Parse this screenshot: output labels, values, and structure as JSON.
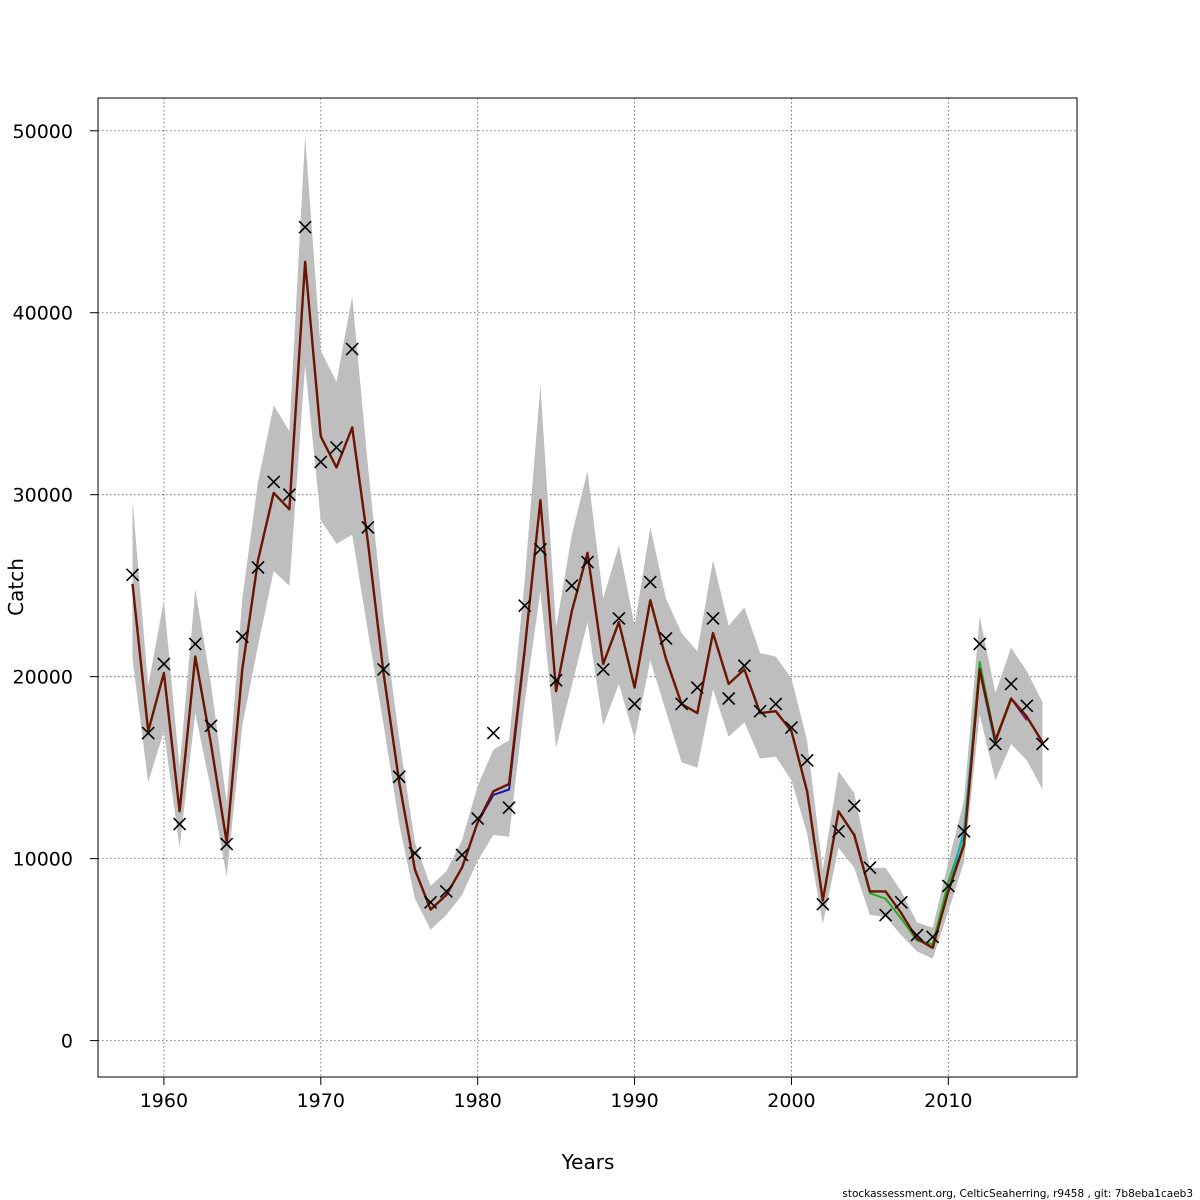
{
  "chart_data": {
    "type": "line",
    "title": "",
    "xlabel": "Years",
    "ylabel": "Catch",
    "xlim": [
      1955.8,
      2018.2
    ],
    "ylim": [
      -2000,
      51800
    ],
    "x_ticks": [
      1960,
      1970,
      1980,
      1990,
      2000,
      2010
    ],
    "y_ticks": [
      0,
      10000,
      20000,
      30000,
      40000,
      50000
    ],
    "x_tick_labels": [
      "1960",
      "1970",
      "1980",
      "1990",
      "2000",
      "2010"
    ],
    "y_tick_labels": [
      "0",
      "10000",
      "20000",
      "30000",
      "40000",
      "50000"
    ],
    "grid": true,
    "legend": "none",
    "footer": "stockassessment.org, CelticSeaherring, r9458 , git: 7b8eba1caeb3",
    "colors": {
      "band": "#bebebe",
      "estimate": "#6b1500",
      "marker": "#000000",
      "retro_1": "#d8c25c",
      "retro_2": "#22aa22",
      "retro_3": "#00b8c8",
      "retro_4": "#1a1aaa",
      "retro_5": "#7a1a7a"
    },
    "observed": {
      "marker": "x",
      "x": [
        1958,
        1959,
        1960,
        1961,
        1962,
        1963,
        1964,
        1965,
        1966,
        1967,
        1968,
        1969,
        1970,
        1971,
        1972,
        1973,
        1974,
        1975,
        1976,
        1977,
        1978,
        1979,
        1980,
        1981,
        1982,
        1983,
        1984,
        1985,
        1986,
        1987,
        1988,
        1989,
        1990,
        1991,
        1992,
        1993,
        1994,
        1995,
        1996,
        1997,
        1998,
        1999,
        2000,
        2001,
        2002,
        2003,
        2004,
        2005,
        2006,
        2007,
        2008,
        2009,
        2010,
        2011,
        2012,
        2013,
        2014,
        2015,
        2016
      ],
      "y": [
        25600,
        16900,
        20700,
        11900,
        21800,
        17300,
        10800,
        22200,
        26000,
        30700,
        30000,
        44700,
        31800,
        32600,
        38000,
        28200,
        20400,
        14500,
        10300,
        7600,
        8200,
        10200,
        12200,
        16900,
        12800,
        23900,
        27000,
        19800,
        25000,
        26300,
        20400,
        23200,
        18500,
        25200,
        22100,
        18500,
        19400,
        23200,
        18800,
        20600,
        18100,
        18500,
        17200,
        15400,
        7500,
        11500,
        12900,
        9500,
        6900,
        7600,
        5800,
        5700,
        8500,
        11500,
        21800,
        16300,
        19600,
        18400,
        16300
      ]
    },
    "series": [
      {
        "role": "estimate",
        "x": [
          1958,
          1959,
          1960,
          1961,
          1962,
          1963,
          1964,
          1965,
          1966,
          1967,
          1968,
          1969,
          1970,
          1971,
          1972,
          1973,
          1974,
          1975,
          1976,
          1977,
          1978,
          1979,
          1980,
          1981,
          1982,
          1983,
          1984,
          1985,
          1986,
          1987,
          1988,
          1989,
          1990,
          1991,
          1992,
          1993,
          1994,
          1995,
          1996,
          1997,
          1998,
          1999,
          2000,
          2001,
          2002,
          2003,
          2004,
          2005,
          2006,
          2007,
          2008,
          2009,
          2010,
          2011,
          2012,
          2013,
          2014,
          2015,
          2016
        ],
        "values": [
          25100,
          17000,
          20200,
          12600,
          21100,
          16300,
          10900,
          20400,
          26400,
          30100,
          29200,
          42800,
          33200,
          31500,
          33700,
          27400,
          20200,
          14200,
          9400,
          7200,
          8000,
          9500,
          12000,
          13700,
          14100,
          21500,
          29700,
          19200,
          23600,
          26800,
          20700,
          23000,
          19400,
          24200,
          21000,
          18500,
          18000,
          22400,
          19600,
          20400,
          18000,
          18100,
          17000,
          13700,
          7700,
          12600,
          11300,
          8200,
          8200,
          7000,
          5600,
          5100,
          8200,
          10800,
          20400,
          16500,
          18800,
          17800,
          16400
        ],
        "upper": [
          29700,
          19500,
          24200,
          15000,
          24800,
          19600,
          13100,
          24300,
          30700,
          34900,
          33500,
          49700,
          37900,
          36200,
          40900,
          31600,
          23200,
          16600,
          10900,
          8500,
          9300,
          11000,
          14000,
          16000,
          16500,
          25300,
          36000,
          22700,
          27800,
          31300,
          24300,
          27200,
          22800,
          28200,
          24300,
          22400,
          21400,
          26400,
          22800,
          23800,
          21300,
          21100,
          19900,
          16500,
          9400,
          14800,
          13600,
          9500,
          9500,
          8200,
          6500,
          6200,
          9800,
          13200,
          23300,
          19100,
          21600,
          20300,
          18600
        ],
        "lower": [
          21000,
          14200,
          17000,
          10600,
          18000,
          13800,
          9000,
          17300,
          21700,
          25800,
          25000,
          37100,
          28600,
          27300,
          27800,
          22500,
          17400,
          11900,
          7800,
          6100,
          6900,
          8000,
          9900,
          11300,
          11200,
          18600,
          24700,
          16100,
          19500,
          23000,
          17300,
          19600,
          16600,
          20900,
          18100,
          15300,
          15000,
          19300,
          16700,
          17500,
          15500,
          15600,
          14300,
          11400,
          6400,
          10600,
          9500,
          6900,
          6800,
          5800,
          4900,
          4500,
          7100,
          9800,
          17900,
          14300,
          16300,
          15400,
          13800
        ]
      },
      {
        "role": "retro",
        "peel": 1,
        "x": [
          2010,
          2011,
          2012,
          2013,
          2014,
          2015
        ],
        "values": [
          8300,
          10500,
          20200,
          16600,
          18800,
          17700
        ]
      },
      {
        "role": "retro",
        "peel": 2,
        "x": [
          2004,
          2005,
          2006,
          2007,
          2008,
          2009,
          2010,
          2011,
          2012,
          2013,
          2014
        ],
        "values": [
          11400,
          8100,
          7800,
          6700,
          5500,
          5300,
          8700,
          11300,
          20800,
          16500,
          18700
        ]
      },
      {
        "role": "retro",
        "peel": 3,
        "x": [
          2010,
          2011,
          2012,
          2013
        ],
        "values": [
          8100,
          11600,
          20300,
          16200
        ]
      },
      {
        "role": "retro",
        "peel": 4,
        "x": [
          1980,
          1981,
          1982,
          1983
        ],
        "values": [
          12000,
          13500,
          13800,
          21400
        ]
      },
      {
        "role": "retro",
        "peel": 5,
        "x": [
          2010,
          2011,
          2012,
          2013,
          2014,
          2015
        ],
        "values": [
          8200,
          10700,
          20300,
          16400,
          18800,
          17600
        ]
      }
    ]
  }
}
